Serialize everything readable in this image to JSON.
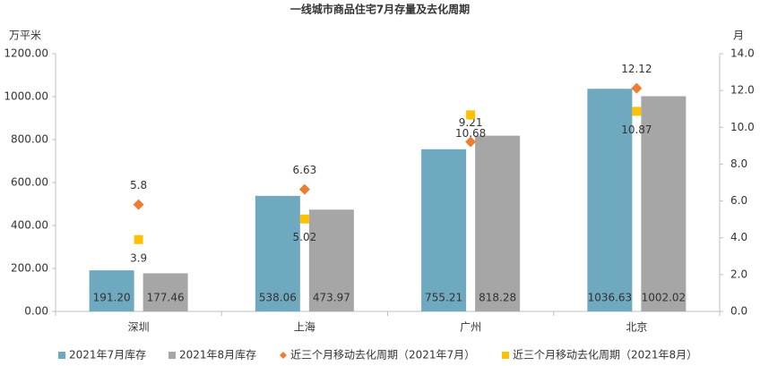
{
  "chart_data": {
    "type": "bar_scatter_combo",
    "title": "一线城市商品住宅7月存量及去化周期",
    "y_label": "万平米",
    "y2_label": "月",
    "categories": [
      "深圳",
      "上海",
      "广州",
      "北京"
    ],
    "series": [
      {
        "name": "2021年7月库存",
        "kind": "bar",
        "color": "#6fa9c0",
        "values": [
          191.2,
          538.06,
          755.21,
          1036.63
        ],
        "value_labels": [
          "191.20",
          "538.06",
          "755.21",
          "1036.63"
        ]
      },
      {
        "name": "2021年8月库存",
        "kind": "bar",
        "color": "#a6a6a6",
        "values": [
          177.46,
          473.97,
          818.28,
          1002.02
        ],
        "value_labels": [
          "177.46",
          "473.97",
          "818.28",
          "1002.02"
        ]
      },
      {
        "name": "近三个月移动去化周期（2021年7月）",
        "kind": "diamond",
        "axis": "y2",
        "color": "#ed7d31",
        "values": [
          5.8,
          6.63,
          9.21,
          12.12
        ]
      },
      {
        "name": "近三个月移动去化周期（2021年8月）",
        "kind": "square",
        "axis": "y2",
        "color": "#ffc000",
        "values": [
          3.9,
          5.02,
          10.68,
          10.87
        ]
      }
    ],
    "ylim": [
      0,
      1200
    ],
    "yticks": [
      {
        "value": 0,
        "label": "0.00"
      },
      {
        "value": 200,
        "label": "200.00"
      },
      {
        "value": 400,
        "label": "400.00"
      },
      {
        "value": 600,
        "label": "600.00"
      },
      {
        "value": 800,
        "label": "800.00"
      },
      {
        "value": 1000,
        "label": "1000.00"
      },
      {
        "value": 1200,
        "label": "1200.00"
      }
    ],
    "y2lim": [
      0,
      14
    ],
    "y2ticks": [
      {
        "value": 0,
        "label": "0.0"
      },
      {
        "value": 2,
        "label": "2.0"
      },
      {
        "value": 4,
        "label": "4.0"
      },
      {
        "value": 6,
        "label": "6.0"
      },
      {
        "value": 8,
        "label": "8.0"
      },
      {
        "value": 10,
        "label": "10.0"
      },
      {
        "value": 12,
        "label": "12.0"
      },
      {
        "value": 14,
        "label": "14.0"
      }
    ]
  }
}
